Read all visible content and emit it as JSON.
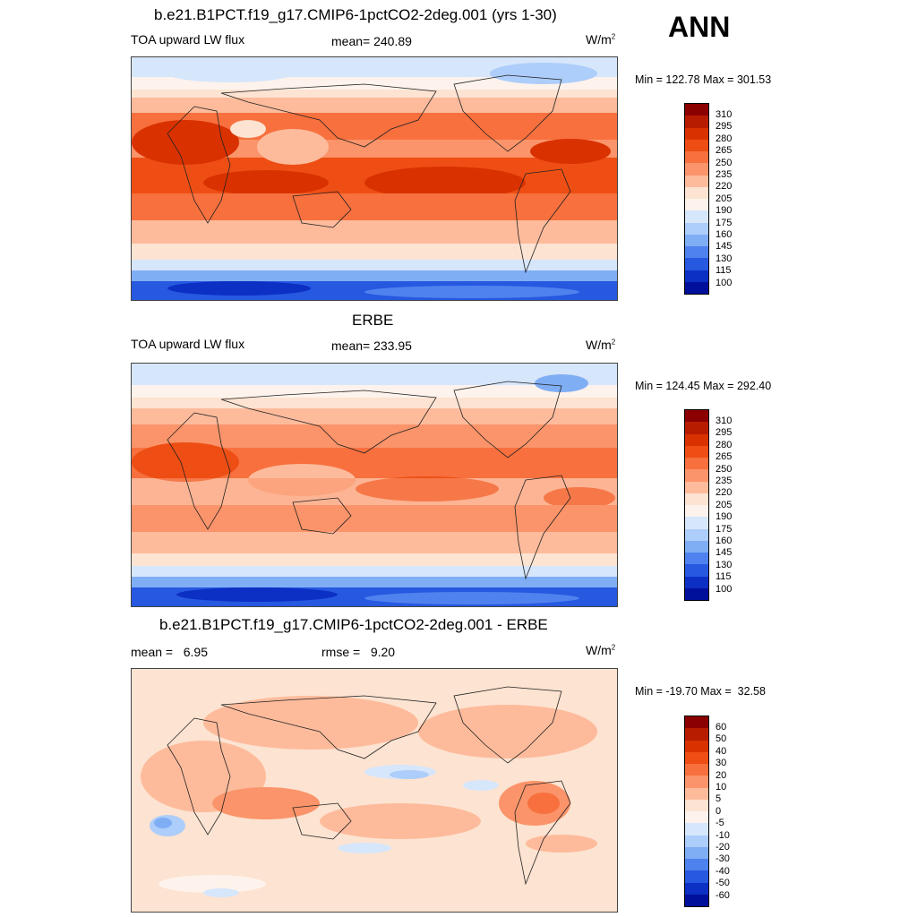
{
  "season": "ANN",
  "panels": [
    {
      "title": "b.e21.B1PCT.f19_g17.CMIP6-1pctCO2-2deg.001 (yrs 1-30)",
      "left_label": "TOA upward LW flux",
      "center_label": "mean= 240.89",
      "units_base": "W/m",
      "units_exp": "2",
      "minmax": "Min = 122.78 Max = 301.53",
      "cbar_labels": [
        "310",
        "295",
        "280",
        "265",
        "250",
        "235",
        "220",
        "205",
        "190",
        "175",
        "160",
        "145",
        "130",
        "115",
        "100"
      ]
    },
    {
      "title": "ERBE",
      "left_label": "TOA upward LW flux",
      "center_label": "mean= 233.95",
      "units_base": "W/m",
      "units_exp": "2",
      "minmax": "Min = 124.45 Max = 292.40",
      "cbar_labels": [
        "310",
        "295",
        "280",
        "265",
        "250",
        "235",
        "220",
        "205",
        "190",
        "175",
        "160",
        "145",
        "130",
        "115",
        "100"
      ]
    },
    {
      "title": "b.e21.B1PCT.f19_g17.CMIP6-1pctCO2-2deg.001 - ERBE",
      "left_label": "mean =   6.95",
      "center_label": "rmse =   9.20",
      "units_base": "W/m",
      "units_exp": "2",
      "minmax": "Min = -19.70 Max =  32.58",
      "cbar_labels": [
        "60",
        "50",
        "40",
        "30",
        "20",
        "10",
        "5",
        "0",
        "-5",
        "-10",
        "-20",
        "-30",
        "-40",
        "-50",
        "-60"
      ]
    }
  ],
  "colors": {
    "colorbar": [
      "#8b0000",
      "#b81c00",
      "#d93200",
      "#ee4e14",
      "#f7703e",
      "#fb946a",
      "#fdbb9c",
      "#fde3d1",
      "#fdf3ec",
      "#d6e6fb",
      "#adcdfa",
      "#80aef5",
      "#4f82ee",
      "#2658e0",
      "#0c2fc4",
      "#00109a"
    ],
    "diff_colorbar": [
      "#8b0000",
      "#b81c00",
      "#d93200",
      "#ee4e14",
      "#f7703e",
      "#fb946a",
      "#fdbb9c",
      "#fde3d1",
      "#fdf3ec",
      "#d6e6fb",
      "#adcdfa",
      "#80aef5",
      "#4f82ee",
      "#2658e0",
      "#0c2fc4",
      "#00109a"
    ]
  }
}
